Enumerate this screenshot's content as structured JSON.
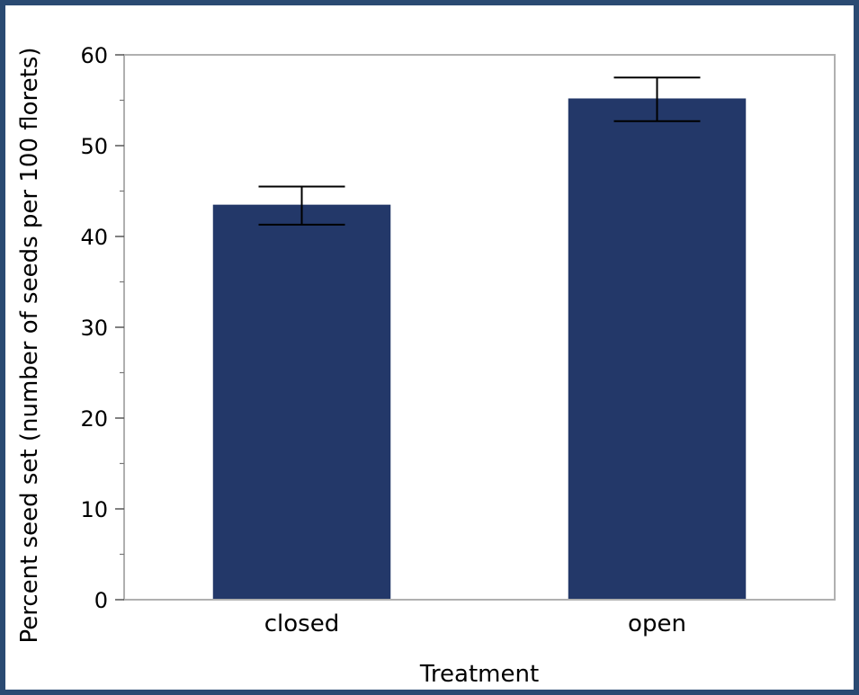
{
  "chart_data": {
    "type": "bar",
    "title": "",
    "xlabel": "Treatment",
    "ylabel": "Percent seed set (number of seeds per 100 florets)",
    "categories": [
      "closed",
      "open"
    ],
    "values": [
      43.5,
      55.2
    ],
    "error_low": [
      41.3,
      52.7
    ],
    "error_high": [
      45.5,
      57.5
    ],
    "ylim": [
      0,
      60
    ],
    "yticks": [
      0,
      10,
      20,
      30,
      40,
      50,
      60
    ],
    "grid": false,
    "bar_color": "#233869",
    "frame_color": "#2a4a72"
  }
}
